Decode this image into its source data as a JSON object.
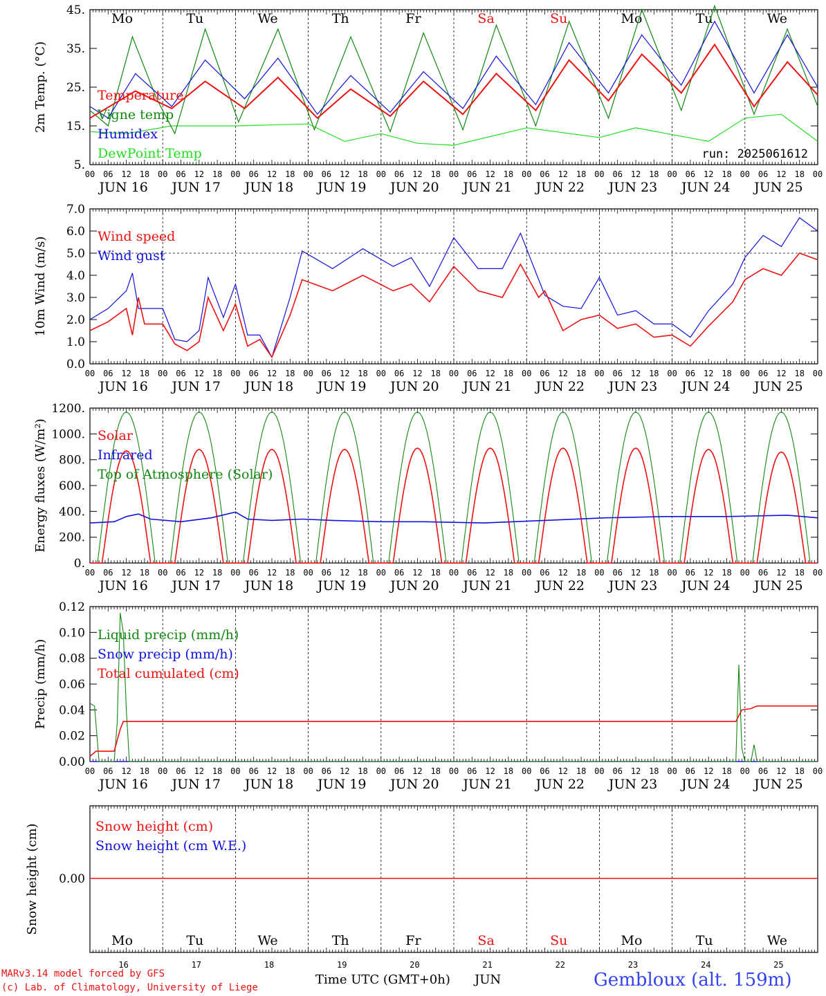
{
  "colors": {
    "red": "#ee1111",
    "green": "#118811",
    "blue": "#1111dd",
    "lightgreen": "#22dd22",
    "black": "#000000",
    "station": "#3344ee"
  },
  "days": [
    "Mo",
    "Tu",
    "We",
    "Th",
    "Fr",
    "Sa",
    "Su",
    "Mo",
    "Tu",
    "We"
  ],
  "weekend_days": [
    "Sa",
    "Su"
  ],
  "date_labels": [
    "JUN 16",
    "JUN 17",
    "JUN 18",
    "JUN 19",
    "JUN 20",
    "JUN 21",
    "JUN 22",
    "JUN 23",
    "JUN 24",
    "JUN 25"
  ],
  "hour_labels": [
    "00",
    "06",
    "12",
    "18"
  ],
  "last_hour_label": "00",
  "bottom_day_numbers": [
    "16",
    "17",
    "18",
    "19",
    "20",
    "21",
    "22",
    "23",
    "24",
    "25"
  ],
  "footer": {
    "model_line1": "MARv3.14 model forced by GFS",
    "model_line2": "(c) Lab. of Climatology, University of Liege",
    "time_axis": "Time UTC (GMT+0h)",
    "month": "JUN",
    "station": "Gembloux (alt. 159m)"
  },
  "chart_data": [
    {
      "type": "line",
      "ylabel": "2m Temp. (°C)",
      "ylim": [
        5,
        45
      ],
      "yticks": [
        "5.",
        "15.",
        "25.",
        "35.",
        "45."
      ],
      "annotation": "run: 2025061612",
      "x_unit": "hours since 2025-06-16 00 UTC",
      "series": [
        {
          "name": "Temperature",
          "color": "red",
          "points": [
            [
              0,
              17
            ],
            [
              15,
              24
            ],
            [
              27,
              19.5
            ],
            [
              38,
              26.5
            ],
            [
              51,
              19.5
            ],
            [
              62,
              27.5
            ],
            [
              75,
              17
            ],
            [
              86,
              24.5
            ],
            [
              99,
              17.5
            ],
            [
              110,
              26.5
            ],
            [
              123,
              18
            ],
            [
              134,
              28.5
            ],
            [
              147,
              19
            ],
            [
              158,
              32
            ],
            [
              171,
              21.5
            ],
            [
              182,
              33.5
            ],
            [
              195,
              23.5
            ],
            [
              206,
              36
            ],
            [
              219,
              20
            ],
            [
              230,
              31.5
            ],
            [
              240,
              23
            ]
          ]
        },
        {
          "name": "Vigne temp",
          "color": "green",
          "points": [
            [
              0,
              19
            ],
            [
              6,
              15
            ],
            [
              14,
              38
            ],
            [
              22,
              22
            ],
            [
              28,
              13
            ],
            [
              38,
              40
            ],
            [
              49,
              16
            ],
            [
              62,
              40
            ],
            [
              74,
              14
            ],
            [
              86,
              38
            ],
            [
              99,
              13.5
            ],
            [
              110,
              39
            ],
            [
              123,
              14
            ],
            [
              134,
              41
            ],
            [
              147,
              15
            ],
            [
              158,
              42
            ],
            [
              171,
              17
            ],
            [
              182,
              45
            ],
            [
              195,
              19
            ],
            [
              206,
              46
            ],
            [
              219,
              18
            ],
            [
              230,
              40
            ],
            [
              240,
              20
            ]
          ]
        },
        {
          "name": "Humidex",
          "color": "blue",
          "points": [
            [
              0,
              20
            ],
            [
              6,
              17
            ],
            [
              15,
              28.5
            ],
            [
              27,
              20
            ],
            [
              38,
              32
            ],
            [
              51,
              22
            ],
            [
              62,
              32.5
            ],
            [
              75,
              18
            ],
            [
              86,
              28
            ],
            [
              99,
              18.5
            ],
            [
              110,
              29
            ],
            [
              123,
              19.5
            ],
            [
              134,
              33
            ],
            [
              147,
              20.5
            ],
            [
              158,
              36.5
            ],
            [
              171,
              23.5
            ],
            [
              182,
              38.5
            ],
            [
              195,
              25.5
            ],
            [
              206,
              42
            ],
            [
              219,
              23.5
            ],
            [
              230,
              38.5
            ],
            [
              240,
              25
            ]
          ]
        },
        {
          "name": "DewPoint Temp",
          "color": "lightgreen",
          "points": [
            [
              0,
              13.5
            ],
            [
              12,
              13
            ],
            [
              27,
              15
            ],
            [
              48,
              15
            ],
            [
              72,
              15.5
            ],
            [
              84,
              11
            ],
            [
              96,
              13
            ],
            [
              108,
              10.5
            ],
            [
              120,
              10
            ],
            [
              144,
              14.5
            ],
            [
              168,
              12
            ],
            [
              180,
              14.5
            ],
            [
              204,
              11
            ],
            [
              216,
              17
            ],
            [
              228,
              18
            ],
            [
              240,
              11
            ]
          ]
        }
      ]
    },
    {
      "type": "line",
      "ylabel": "10m Wind (m/s)",
      "ylim": [
        0,
        7
      ],
      "yticks": [
        "0.0",
        "1.0",
        "2.0",
        "3.0",
        "4.0",
        "5.0",
        "6.0",
        "7.0"
      ],
      "reference_line": 5,
      "series": [
        {
          "name": "Wind speed",
          "color": "red",
          "points": [
            [
              0,
              1.5
            ],
            [
              6,
              1.9
            ],
            [
              12,
              2.5
            ],
            [
              14,
              1.3
            ],
            [
              16,
              3
            ],
            [
              18,
              1.8
            ],
            [
              24,
              1.8
            ],
            [
              28,
              0.9
            ],
            [
              32,
              0.6
            ],
            [
              36,
              1
            ],
            [
              39,
              3
            ],
            [
              44,
              1.5
            ],
            [
              48,
              2.7
            ],
            [
              52,
              0.8
            ],
            [
              56,
              1.1
            ],
            [
              60,
              0.3
            ],
            [
              66,
              2.2
            ],
            [
              70,
              3.8
            ],
            [
              80,
              3.3
            ],
            [
              90,
              4
            ],
            [
              100,
              3.3
            ],
            [
              106,
              3.6
            ],
            [
              112,
              2.8
            ],
            [
              120,
              4.4
            ],
            [
              128,
              3.3
            ],
            [
              136,
              3
            ],
            [
              142,
              4.5
            ],
            [
              148,
              3
            ],
            [
              150,
              3.3
            ],
            [
              156,
              1.5
            ],
            [
              162,
              2
            ],
            [
              168,
              2.2
            ],
            [
              174,
              1.6
            ],
            [
              180,
              1.8
            ],
            [
              186,
              1.2
            ],
            [
              192,
              1.3
            ],
            [
              198,
              0.8
            ],
            [
              204,
              1.7
            ],
            [
              212,
              2.8
            ],
            [
              216,
              3.8
            ],
            [
              222,
              4.3
            ],
            [
              228,
              4
            ],
            [
              234,
              5
            ],
            [
              240,
              4.7
            ]
          ]
        },
        {
          "name": "Wind gust",
          "color": "blue",
          "points": [
            [
              0,
              2
            ],
            [
              6,
              2.5
            ],
            [
              12,
              3.3
            ],
            [
              14,
              4.1
            ],
            [
              16,
              2.5
            ],
            [
              24,
              2.5
            ],
            [
              28,
              1.1
            ],
            [
              32,
              1
            ],
            [
              36,
              1.5
            ],
            [
              39,
              3.9
            ],
            [
              44,
              2.1
            ],
            [
              48,
              3.6
            ],
            [
              52,
              1.3
            ],
            [
              56,
              1.3
            ],
            [
              60,
              0.3
            ],
            [
              66,
              3
            ],
            [
              70,
              5.1
            ],
            [
              80,
              4.3
            ],
            [
              90,
              5.2
            ],
            [
              100,
              4.4
            ],
            [
              106,
              4.8
            ],
            [
              112,
              3.5
            ],
            [
              120,
              5.7
            ],
            [
              128,
              4.3
            ],
            [
              136,
              4.3
            ],
            [
              142,
              5.9
            ],
            [
              148,
              3.8
            ],
            [
              150,
              3.1
            ],
            [
              156,
              2.6
            ],
            [
              162,
              2.5
            ],
            [
              168,
              3.9
            ],
            [
              174,
              2.2
            ],
            [
              180,
              2.4
            ],
            [
              186,
              1.8
            ],
            [
              192,
              1.8
            ],
            [
              198,
              1.2
            ],
            [
              204,
              2.4
            ],
            [
              212,
              3.6
            ],
            [
              216,
              4.8
            ],
            [
              222,
              5.8
            ],
            [
              228,
              5.3
            ],
            [
              234,
              6.6
            ],
            [
              240,
              6
            ]
          ]
        }
      ]
    },
    {
      "type": "line",
      "ylabel": "Energy fluxes (W/m²)",
      "ylim": [
        0,
        1200
      ],
      "yticks": [
        "0.",
        "200.",
        "400.",
        "600.",
        "800.",
        "1000.",
        "1200."
      ],
      "series": [
        {
          "name": "Solar",
          "color": "red",
          "day_peaks": [
            870,
            880,
            880,
            880,
            890,
            890,
            890,
            890,
            880,
            860
          ],
          "day_start_h": 4,
          "day_end_h": 20
        },
        {
          "name": "Infrared",
          "color": "blue",
          "points": [
            [
              0,
              310
            ],
            [
              8,
              320
            ],
            [
              12,
              360
            ],
            [
              16,
              380
            ],
            [
              20,
              340
            ],
            [
              30,
              320
            ],
            [
              40,
              350
            ],
            [
              48,
              395
            ],
            [
              52,
              340
            ],
            [
              60,
              330
            ],
            [
              70,
              340
            ],
            [
              80,
              330
            ],
            [
              96,
              320
            ],
            [
              110,
              320
            ],
            [
              130,
              310
            ],
            [
              150,
              330
            ],
            [
              170,
              350
            ],
            [
              190,
              360
            ],
            [
              210,
              360
            ],
            [
              230,
              370
            ],
            [
              240,
              350
            ]
          ]
        },
        {
          "name": "Top of Atmosphere (Solar)",
          "color": "green",
          "day_peaks": [
            1170,
            1170,
            1170,
            1170,
            1170,
            1170,
            1170,
            1170,
            1170,
            1170
          ],
          "day_start_h": 2.5,
          "day_end_h": 21.5
        }
      ]
    },
    {
      "type": "line",
      "ylabel": "Precip (mm/h)",
      "ylim": [
        0,
        0.12
      ],
      "yticks": [
        "0.00",
        "0.02",
        "0.04",
        "0.06",
        "0.08",
        "0.10",
        "0.12"
      ],
      "series": [
        {
          "name": "Liquid precip (mm/h)",
          "color": "green",
          "points": [
            [
              0,
              0.045
            ],
            [
              1.5,
              0.043
            ],
            [
              3,
              0
            ],
            [
              8,
              0
            ],
            [
              9,
              0.03
            ],
            [
              10,
              0.115
            ],
            [
              11,
              0.1
            ],
            [
              12,
              0.04
            ],
            [
              13,
              0
            ],
            [
              213,
              0
            ],
            [
              214,
              0.075
            ],
            [
              215,
              0.01
            ],
            [
              216,
              0
            ],
            [
              218,
              0
            ],
            [
              219,
              0.013
            ],
            [
              220,
              0
            ],
            [
              240,
              0
            ]
          ]
        },
        {
          "name": "Snow precip (mm/h)",
          "color": "blue",
          "points": [
            [
              0,
              0
            ],
            [
              240,
              0
            ]
          ]
        },
        {
          "name": "Total cumulated (cm)",
          "color": "red",
          "points": [
            [
              0,
              0.004
            ],
            [
              2,
              0.008
            ],
            [
              8,
              0.008
            ],
            [
              10,
              0.025
            ],
            [
              11,
              0.031
            ],
            [
              213,
              0.031
            ],
            [
              215,
              0.04
            ],
            [
              218,
              0.041
            ],
            [
              220,
              0.043
            ],
            [
              240,
              0.043
            ]
          ]
        }
      ]
    },
    {
      "type": "line",
      "ylabel": "Snow height (cm)",
      "yticks": [
        "0.00"
      ],
      "series": [
        {
          "name": "Snow height (cm)",
          "color": "red",
          "points": [
            [
              0,
              0
            ],
            [
              240,
              0
            ]
          ]
        },
        {
          "name": "Snow height (cm W.E.)",
          "color": "blue",
          "points": []
        }
      ]
    }
  ]
}
